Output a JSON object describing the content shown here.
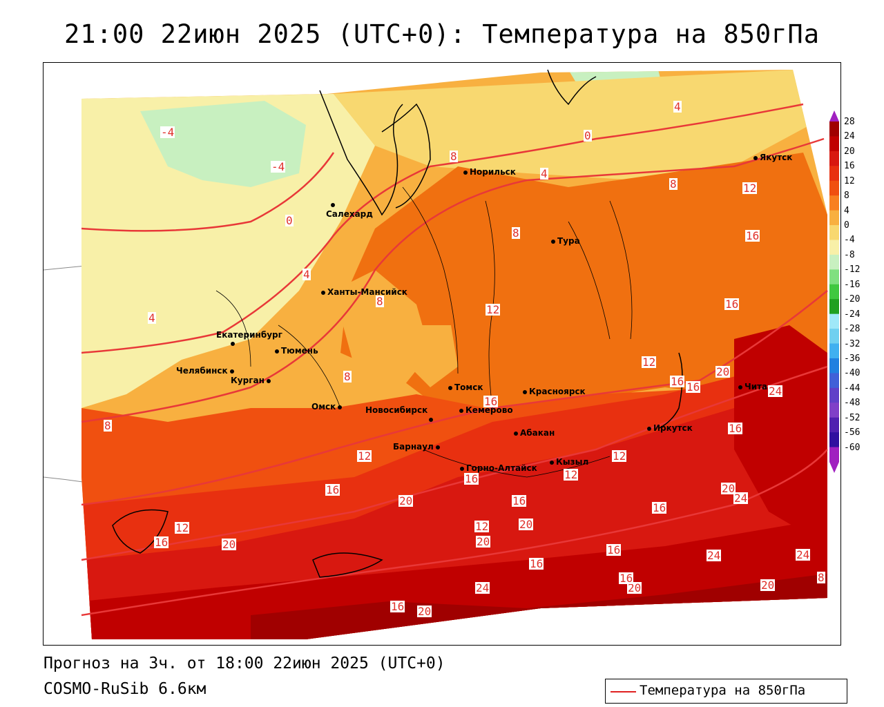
{
  "title": "21:00 22июн 2025 (UTC+0): Температура на 850гПа",
  "footer": {
    "forecast": "Прогноз на 3ч. от 18:00 22июн 2025 (UTC+0)",
    "model": "COSMO-RuSib 6.6км"
  },
  "legend": {
    "label": "Температура на 850гПа",
    "line_color": "#e02020"
  },
  "colorbar": {
    "labels": [
      "28",
      "24",
      "20",
      "16",
      "12",
      "8",
      "4",
      "0",
      "-4",
      "-8",
      "-12",
      "-16",
      "-20",
      "-24",
      "-28",
      "-32",
      "-36",
      "-40",
      "-44",
      "-48",
      "-52",
      "-56",
      "-60"
    ],
    "colors": [
      "#a00000",
      "#c00000",
      "#d81810",
      "#e83010",
      "#f05010",
      "#f88020",
      "#f8b040",
      "#f8d870",
      "#f8f0a8",
      "#c8f0c0",
      "#80e080",
      "#40c840",
      "#20a020",
      "#a0e8f8",
      "#70d0f0",
      "#40b0f0",
      "#2080e0",
      "#4060d8",
      "#6040c8",
      "#8040c8",
      "#5020b0",
      "#3010a0",
      "#a020c0"
    ]
  },
  "cities": [
    {
      "name": "Норильск"
    },
    {
      "name": "Якутск"
    },
    {
      "name": "Салехард"
    },
    {
      "name": "Тура"
    },
    {
      "name": "Ханты-Мансийск"
    },
    {
      "name": "Екатеринбург"
    },
    {
      "name": "Тюмень"
    },
    {
      "name": "Челябинск"
    },
    {
      "name": "Курган"
    },
    {
      "name": "Омск"
    },
    {
      "name": "Томск"
    },
    {
      "name": "Красноярск"
    },
    {
      "name": "Новосибирск"
    },
    {
      "name": "Кемерово"
    },
    {
      "name": "Абакан"
    },
    {
      "name": "Барнаул"
    },
    {
      "name": "Иркутск"
    },
    {
      "name": "Чита"
    },
    {
      "name": "Горно-Алтайск"
    },
    {
      "name": "Кызыл"
    }
  ],
  "contour_labels": [
    {
      "v": "4"
    },
    {
      "v": "0"
    },
    {
      "v": "-4"
    },
    {
      "v": "-4"
    },
    {
      "v": "8"
    },
    {
      "v": "4"
    },
    {
      "v": "8"
    },
    {
      "v": "12"
    },
    {
      "v": "8"
    },
    {
      "v": "16"
    },
    {
      "v": "0"
    },
    {
      "v": "4"
    },
    {
      "v": "8"
    },
    {
      "v": "16"
    },
    {
      "v": "12"
    },
    {
      "v": "20"
    },
    {
      "v": "16"
    },
    {
      "v": "16"
    },
    {
      "v": "24"
    },
    {
      "v": "16"
    },
    {
      "v": "12"
    },
    {
      "v": "16"
    },
    {
      "v": "20"
    },
    {
      "v": "24"
    },
    {
      "v": "16"
    },
    {
      "v": "20"
    },
    {
      "v": "12"
    },
    {
      "v": "20"
    },
    {
      "v": "16"
    },
    {
      "v": "12"
    },
    {
      "v": "16"
    },
    {
      "v": "12"
    },
    {
      "v": "16"
    },
    {
      "v": "12"
    },
    {
      "v": "20"
    },
    {
      "v": "16"
    },
    {
      "v": "20"
    },
    {
      "v": "24"
    },
    {
      "v": "16"
    },
    {
      "v": "20"
    },
    {
      "v": "24"
    },
    {
      "v": "24"
    },
    {
      "v": "20"
    },
    {
      "v": "16"
    },
    {
      "v": "8"
    },
    {
      "v": "4"
    },
    {
      "v": "8"
    },
    {
      "v": "12"
    },
    {
      "v": "16"
    },
    {
      "v": "20"
    },
    {
      "v": "16"
    },
    {
      "v": "8"
    }
  ]
}
